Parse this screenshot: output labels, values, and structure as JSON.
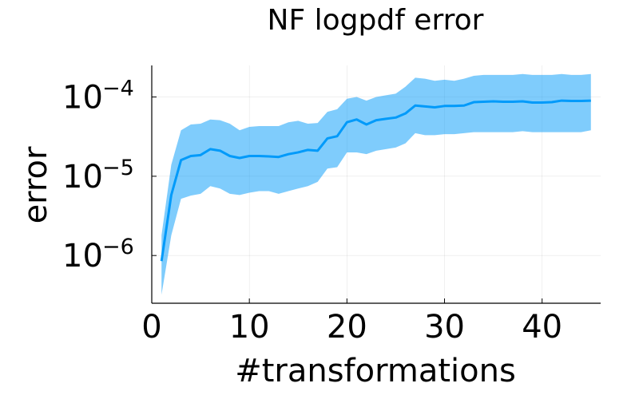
{
  "chart_data": {
    "type": "line",
    "title": "NF logpdf error",
    "xlabel": "#transformations",
    "ylabel": "error",
    "xlim": [
      0,
      46
    ],
    "ylim": [
      2.5e-07,
      0.00025
    ],
    "yscale": "log",
    "grid": true,
    "x_ticks": [
      0,
      10,
      20,
      30,
      40
    ],
    "y_ticks": [
      {
        "value": 1e-06,
        "base": "10",
        "exp": "−6"
      },
      {
        "value": 1e-05,
        "base": "10",
        "exp": "−5"
      },
      {
        "value": 0.0001,
        "base": "10",
        "exp": "−4"
      }
    ],
    "colors": {
      "line": "#009AFA",
      "band": "#009AFA"
    },
    "band_opacity": 0.5,
    "series": [
      {
        "x": [
          1,
          2,
          3,
          4,
          5,
          6,
          7,
          8,
          9,
          10,
          11,
          12,
          13,
          14,
          15,
          16,
          17,
          18,
          19,
          20,
          21,
          22,
          23,
          24,
          25,
          26,
          27,
          28,
          29,
          30,
          31,
          32,
          33,
          34,
          35,
          36,
          37,
          38,
          39,
          40,
          41,
          42,
          43,
          44,
          45
        ],
        "values": [
          8.5e-07,
          5.8e-06,
          1.6e-05,
          1.8e-05,
          1.85e-05,
          2.2e-05,
          2.1e-05,
          1.8e-05,
          1.7e-05,
          1.8e-05,
          1.8e-05,
          1.78e-05,
          1.75e-05,
          1.9e-05,
          2e-05,
          2.15e-05,
          2.1e-05,
          3e-05,
          3.2e-05,
          4.8e-05,
          5.2e-05,
          4.5e-05,
          5.1e-05,
          5.3e-05,
          5.5e-05,
          6.2e-05,
          7.8e-05,
          7.6e-05,
          7.4e-05,
          7.7e-05,
          7.7e-05,
          7.8e-05,
          8.6e-05,
          8.7e-05,
          8.8e-05,
          8.7e-05,
          8.7e-05,
          8.8e-05,
          8.5e-05,
          8.5e-05,
          8.6e-05,
          9e-05,
          8.9e-05,
          8.9e-05,
          9e-05
        ],
        "lower": [
          3.2e-07,
          1.8e-06,
          5.2e-06,
          5.7e-06,
          6e-06,
          7.5e-06,
          7e-06,
          6e-06,
          5.8e-06,
          6.2e-06,
          6.5e-06,
          6.5e-06,
          6e-06,
          6.5e-06,
          7e-06,
          7.5e-06,
          8.5e-06,
          1.25e-05,
          1.3e-05,
          2e-05,
          2e-05,
          1.9e-05,
          2.1e-05,
          2.2e-05,
          2.3e-05,
          2.6e-05,
          3.5e-05,
          3.3e-05,
          3.3e-05,
          3.4e-05,
          3.4e-05,
          3.5e-05,
          3.6e-05,
          3.6e-05,
          3.6e-05,
          3.6e-05,
          3.6e-05,
          3.7e-05,
          3.6e-05,
          3.6e-05,
          3.6e-05,
          3.6e-05,
          3.6e-05,
          3.6e-05,
          3.8e-05
        ],
        "upper": [
          1.8e-06,
          1.4e-05,
          3.8e-05,
          4.5e-05,
          4.6e-05,
          5.2e-05,
          5.1e-05,
          4.6e-05,
          3.8e-05,
          4.2e-05,
          4.3e-05,
          4.3e-05,
          4.3e-05,
          4.8e-05,
          5e-05,
          4.6e-05,
          4.7e-05,
          6.5e-05,
          7e-05,
          9.5e-05,
          0.0001,
          9e-05,
          0.0001,
          0.000105,
          0.00011,
          0.000135,
          0.000175,
          0.00017,
          0.00016,
          0.000165,
          0.00016,
          0.00017,
          0.000185,
          0.00019,
          0.00019,
          0.00019,
          0.00019,
          0.000195,
          0.00019,
          0.00019,
          0.00019,
          0.000195,
          0.00019,
          0.00019,
          0.000195
        ]
      }
    ]
  }
}
